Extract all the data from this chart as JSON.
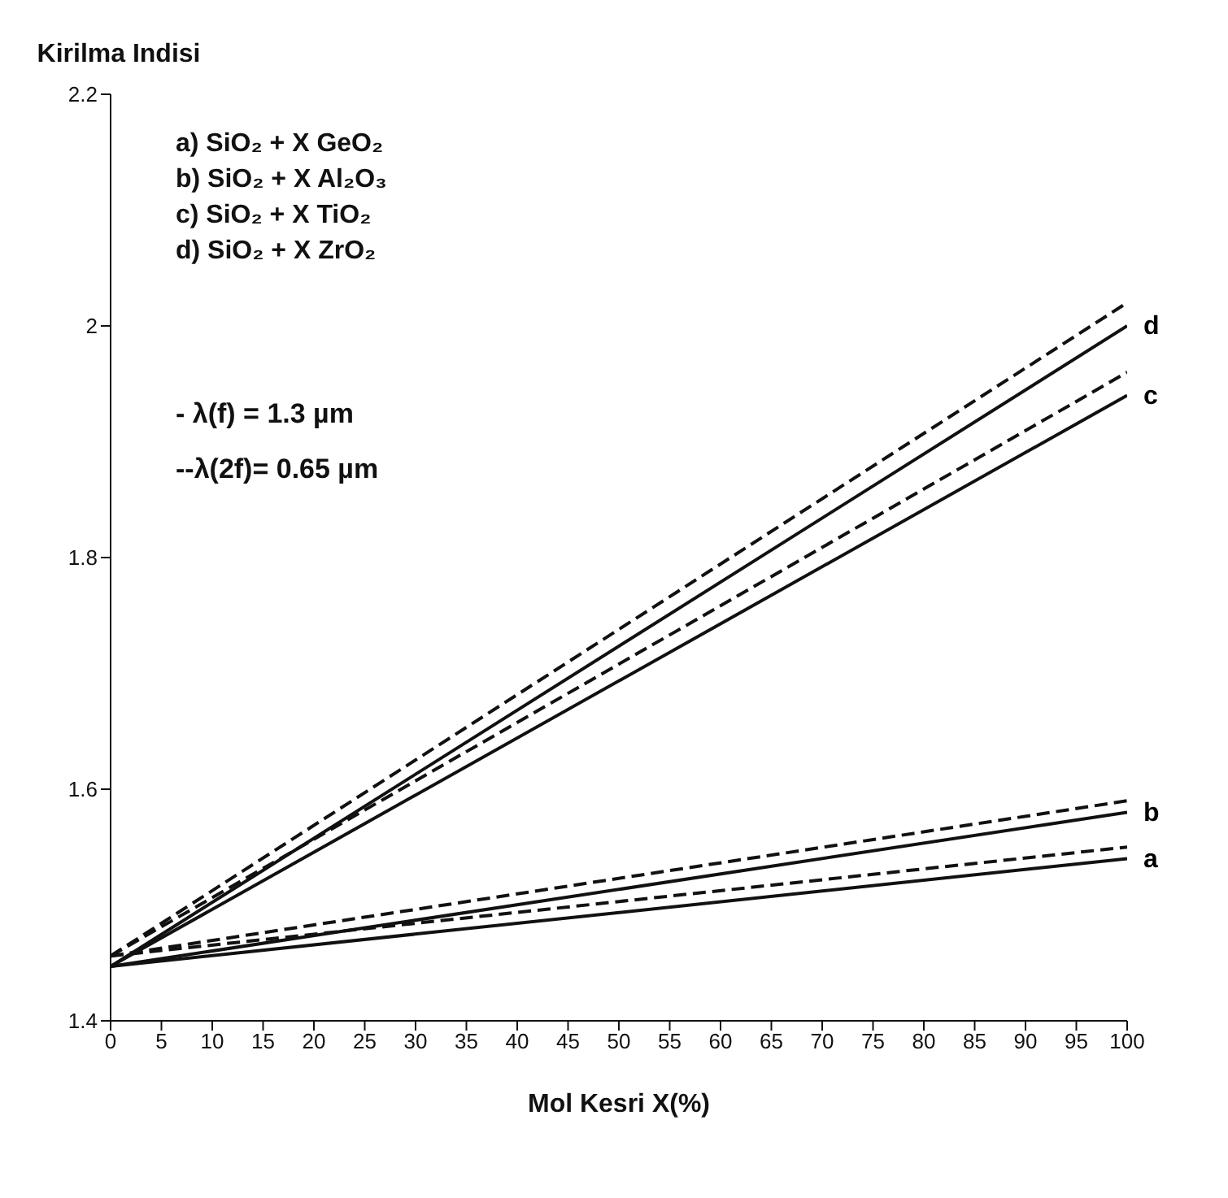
{
  "chart_data": {
    "type": "line",
    "xlabel": "Mol Kesri X(%)",
    "ylabel": "Kirilma Indisi",
    "x": [
      0,
      100
    ],
    "series": [
      {
        "name": "d",
        "color": "#111111",
        "line_style": "solid",
        "values": [
          1.447,
          2.0
        ]
      },
      {
        "color": "#111111",
        "line_style": "dashed",
        "values": [
          1.456,
          2.02
        ]
      },
      {
        "name": "c",
        "color": "#111111",
        "line_style": "solid",
        "values": [
          1.447,
          1.94
        ]
      },
      {
        "color": "#111111",
        "line_style": "dashed",
        "values": [
          1.456,
          1.96
        ]
      },
      {
        "name": "b",
        "color": "#111111",
        "line_style": "solid",
        "values": [
          1.447,
          1.58
        ]
      },
      {
        "color": "#111111",
        "line_style": "dashed",
        "values": [
          1.456,
          1.59
        ]
      },
      {
        "name": "a",
        "color": "#111111",
        "line_style": "solid",
        "values": [
          1.447,
          1.54
        ]
      },
      {
        "color": "#111111",
        "line_style": "dashed",
        "values": [
          1.456,
          1.55
        ]
      }
    ],
    "xlim": [
      0,
      100
    ],
    "xticks": [
      0,
      5,
      10,
      15,
      20,
      25,
      30,
      35,
      40,
      45,
      50,
      55,
      60,
      65,
      70,
      75,
      80,
      85,
      90,
      95,
      100
    ],
    "ylim": [
      1.4,
      2.2
    ],
    "yticks": [
      1.4,
      1.6,
      1.8,
      2,
      2.2
    ],
    "grid": false,
    "marker": "none",
    "annotations": [
      "a) SiO₂ + X GeO₂",
      "b) SiO₂ + X Al₂O₃",
      "c) SiO₂ + X TiO₂",
      "d) SiO₂ + X ZrO₂",
      "- λ(f) = 1.3 µm",
      "--λ(2f)= 0.65 µm"
    ]
  }
}
